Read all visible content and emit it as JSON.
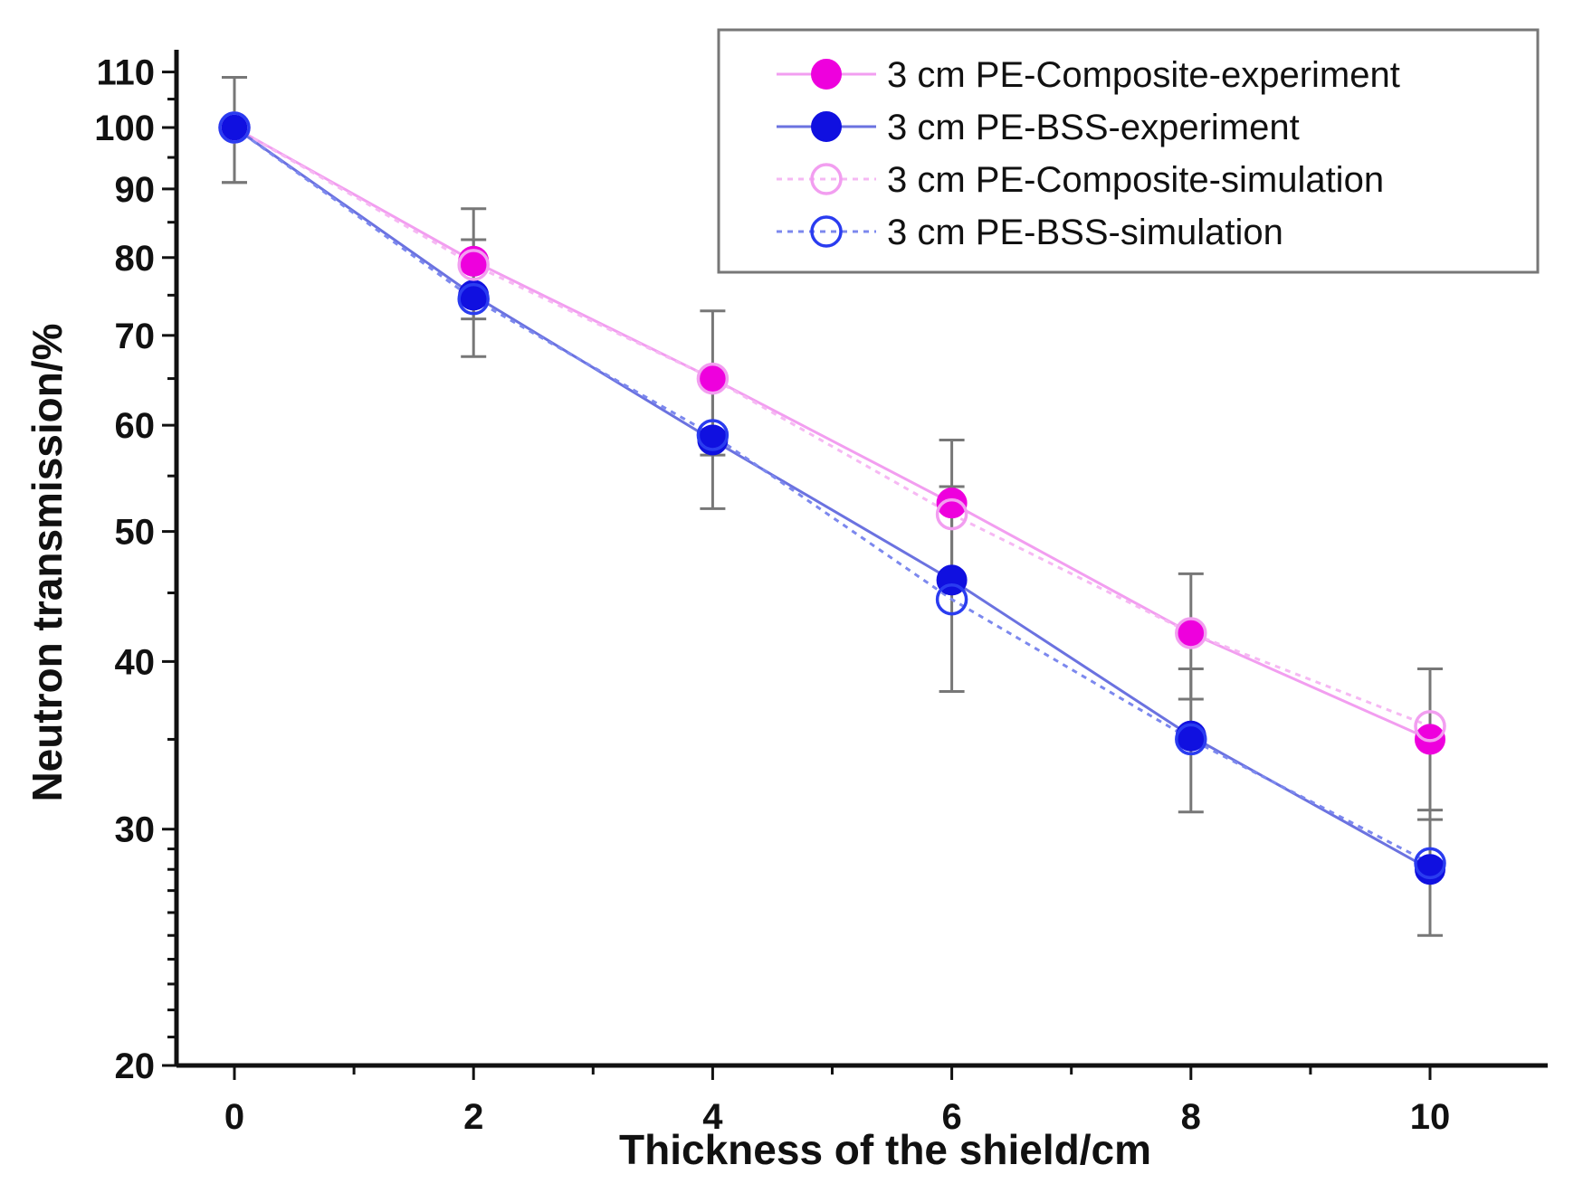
{
  "chart_data": {
    "type": "line",
    "title": "",
    "xlabel": "Thickness of the shield/cm",
    "ylabel": "Neutron transmission/%",
    "xlim": [
      -0.5,
      11.0
    ],
    "ylim": [
      20,
      115
    ],
    "yscale": "log",
    "x_ticks": [
      0,
      2,
      4,
      6,
      8,
      10
    ],
    "x_tick_labels": [
      "0",
      "2",
      "4",
      "6",
      "8",
      "10"
    ],
    "y_ticks": [
      20,
      30,
      40,
      50,
      60,
      70,
      80,
      90,
      100,
      110
    ],
    "y_tick_labels": [
      "20",
      "30",
      "40",
      "50",
      "60",
      "70",
      "80",
      "90",
      "100",
      "110"
    ],
    "legend_position": "top-right",
    "x": [
      0,
      2,
      4,
      6,
      8,
      10
    ],
    "series": [
      {
        "name": "3 cm PE-Composite-experiment",
        "color": "#ee00dd",
        "line_color": "#f29ef0",
        "marker": "filled-circle",
        "line_style": "solid",
        "values": [
          100,
          79.5,
          65,
          52.5,
          42,
          35
        ],
        "errors": [
          9,
          7.5,
          8,
          6,
          4.5,
          4.5
        ]
      },
      {
        "name": "3 cm PE-BSS-experiment",
        "color": "#1010e0",
        "line_color": "#6b72e0",
        "marker": "filled-circle",
        "line_style": "solid",
        "values": [
          100,
          75,
          58.5,
          46,
          35.2,
          28
        ],
        "errors": [
          9,
          7.5,
          6.5,
          8,
          4.3,
          3
        ]
      },
      {
        "name": "3 cm PE-Composite-simulation",
        "color": "#f29ef0",
        "line_color": "#f6b8f3",
        "marker": "open-circle",
        "line_style": "dotted",
        "values": [
          100,
          79,
          65,
          51.5,
          42,
          35.8
        ],
        "errors": []
      },
      {
        "name": "3 cm PE-BSS-simulation",
        "color": "#2a3cf0",
        "line_color": "#7c88ee",
        "marker": "open-circle",
        "line_style": "dotted",
        "values": [
          100,
          74.5,
          59,
          44.5,
          35,
          28.3
        ],
        "errors": []
      }
    ]
  }
}
